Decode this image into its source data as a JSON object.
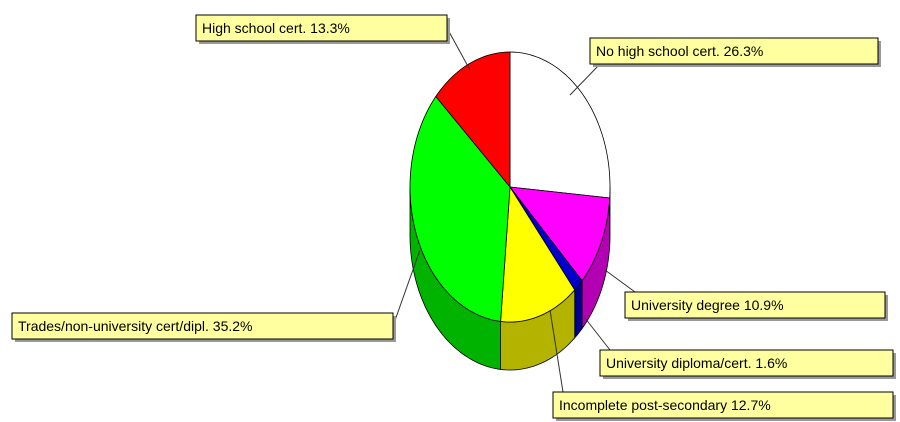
{
  "chart_data": {
    "type": "pie3d",
    "categories": [
      "No high school cert.",
      "University degree",
      "University diploma/cert.",
      "Incomplete post-secondary",
      "Trades/non-university cert/dipl.",
      "High school cert."
    ],
    "values": [
      26.3,
      10.9,
      1.6,
      12.7,
      35.2,
      13.3
    ],
    "value_labels": [
      "26.3%",
      "10.9%",
      "1.6%",
      "12.7%",
      "35.2%",
      "13.3%"
    ],
    "colors": [
      "#ffffff",
      "#ff00ff",
      "#0000cc",
      "#ffff00",
      "#00ff00",
      "#ff0000"
    ]
  }
}
